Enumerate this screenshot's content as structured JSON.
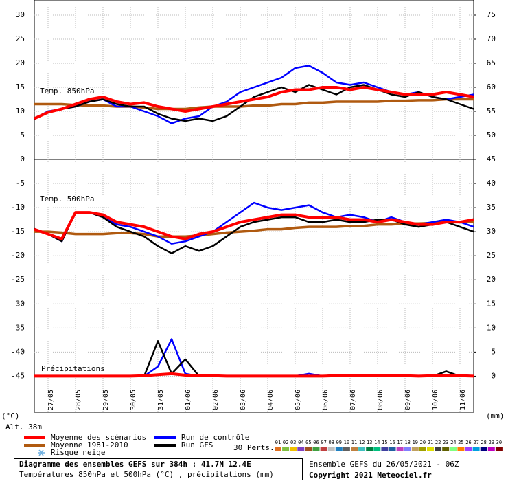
{
  "chart_data": {
    "type": "line",
    "title": "Diagramme des ensembles GEFS sur 384h : 41.7N 12.4E",
    "subtitle": "Températures 850hPa et 500hPa (°C) , précipitations (mm)",
    "run_info": "Ensemble GEFS du 26/05/2021 - 06Z",
    "copyright": "Copyright 2021 Meteociel.fr",
    "y_unit": "(°C)",
    "y2_unit": "(mm)",
    "altitude": "Alt. 38m",
    "categories": [
      null,
      "27/05",
      null,
      "28/05",
      null,
      "29/05",
      null,
      "30/05",
      null,
      "31/05",
      null,
      "01/06",
      null,
      "02/06",
      null,
      "03/06",
      null,
      "04/06",
      null,
      "05/06",
      null,
      "06/06",
      null,
      "07/06",
      null,
      "08/06",
      null,
      "09/06",
      null,
      "10/06",
      null,
      "11/06",
      null
    ],
    "grid": true,
    "legend": [
      {
        "name": "Moyenne des scénarios",
        "color": "#ff0000"
      },
      {
        "name": "Moyenne 1981-2010",
        "color": "#b05a10"
      },
      {
        "name": "Run de contrôle",
        "color": "#0000ff"
      },
      {
        "name": "Run GFS",
        "color": "#000000"
      },
      {
        "name": "Risque neige",
        "color": "#6aaee0"
      }
    ],
    "perturbations": {
      "label": "30 Perts.",
      "members": [
        {
          "name": "01",
          "color": "#e07020"
        },
        {
          "name": "02",
          "color": "#80c040"
        },
        {
          "name": "03",
          "color": "#f0c000"
        },
        {
          "name": "04",
          "color": "#8040c0"
        },
        {
          "name": "05",
          "color": "#a05020"
        },
        {
          "name": "06",
          "color": "#40a040"
        },
        {
          "name": "07",
          "color": "#c04040"
        },
        {
          "name": "08",
          "color": "#c0c0c0"
        },
        {
          "name": "09",
          "color": "#2080c0"
        },
        {
          "name": "10",
          "color": "#606060"
        },
        {
          "name": "11",
          "color": "#c08040"
        },
        {
          "name": "12",
          "color": "#40c0c0"
        },
        {
          "name": "13",
          "color": "#008040"
        },
        {
          "name": "14",
          "color": "#00c080"
        },
        {
          "name": "15",
          "color": "#4040a0"
        },
        {
          "name": "16",
          "color": "#2060a0"
        },
        {
          "name": "17",
          "color": "#c040c0"
        },
        {
          "name": "18",
          "color": "#8080ff"
        },
        {
          "name": "19",
          "color": "#c0a060"
        },
        {
          "name": "20",
          "color": "#a0a000"
        },
        {
          "name": "21",
          "color": "#e0e000"
        },
        {
          "name": "22",
          "color": "#404040"
        },
        {
          "name": "23",
          "color": "#606000"
        },
        {
          "name": "24",
          "color": "#80ff80"
        },
        {
          "name": "25",
          "color": "#ff8000"
        },
        {
          "name": "26",
          "color": "#a040ff"
        },
        {
          "name": "27",
          "color": "#00a0e0"
        },
        {
          "name": "28",
          "color": "#000080"
        },
        {
          "name": "29",
          "color": "#c000c0"
        },
        {
          "name": "30",
          "color": "#800000"
        }
      ]
    },
    "panels": [
      {
        "label": "Temp. 850hPa",
        "ylim": [
          0,
          33
        ],
        "yticks": [
          0,
          5,
          10,
          15,
          20,
          25,
          30
        ],
        "y2lim": [
          45,
          78
        ],
        "y2ticks": [
          45,
          50,
          55,
          60,
          65,
          70,
          75
        ],
        "series": [
          {
            "color": "#b05a10",
            "values": [
              11.5,
              11.5,
              11.5,
              11.3,
              11.2,
              11.2,
              11,
              11,
              10.8,
              10.5,
              10.5,
              10.5,
              10.8,
              11,
              11,
              11,
              11.2,
              11.2,
              11.5,
              11.5,
              11.8,
              11.8,
              12,
              12,
              12,
              12,
              12.2,
              12.2,
              12.3,
              12.3,
              12.5,
              12.5,
              12.5
            ]
          },
          {
            "color": "#0000ff",
            "values": [
              8.5,
              10,
              10.5,
              11,
              12,
              12.5,
              11,
              11,
              10,
              9,
              7.5,
              8.5,
              9,
              11,
              12,
              14,
              15,
              16,
              17,
              19,
              19.5,
              18,
              16,
              15.5,
              16,
              15,
              14,
              13.5,
              14,
              13,
              12.5,
              13,
              13.5
            ]
          },
          {
            "color": "#000000",
            "values": [
              8.5,
              9.8,
              10.5,
              11,
              12,
              12.5,
              11.5,
              11,
              11,
              9.5,
              8.5,
              8,
              8.5,
              8,
              9,
              11,
              13,
              14,
              15,
              14,
              15.5,
              14.5,
              13.5,
              15,
              15.5,
              14.5,
              13.5,
              13,
              14,
              13,
              12.5,
              11.5,
              10.5
            ]
          },
          {
            "color": "#ff0000",
            "values": [
              8.5,
              9.8,
              10.5,
              11.5,
              12.5,
              13,
              12,
              11.5,
              11.8,
              11,
              10.5,
              10,
              10.5,
              11,
              11.5,
              12,
              12.5,
              13,
              14,
              14.5,
              14.5,
              15,
              15,
              14.5,
              15,
              14.5,
              14,
              13.5,
              13.5,
              13.5,
              14,
              13.5,
              13
            ]
          }
        ]
      },
      {
        "label": "Temp. 500hPa",
        "label2": "Précipitations",
        "ylim": [
          -52.5,
          0
        ],
        "yticks": [
          -5,
          -10,
          -15,
          -20,
          -25,
          -30,
          -35,
          -40,
          -45
        ],
        "y2lim": [
          -7.5,
          45
        ],
        "y2ticks": [
          0,
          5,
          10,
          15,
          20,
          25,
          30,
          35,
          40
        ],
        "series": [
          {
            "color": "#b05a10",
            "values": [
              -15,
              -15,
              -15.2,
              -15.5,
              -15.5,
              -15.5,
              -15.3,
              -15.3,
              -15.5,
              -16,
              -16,
              -16,
              -15.8,
              -15.5,
              -15.2,
              -15,
              -14.8,
              -14.5,
              -14.5,
              -14.2,
              -14,
              -14,
              -14,
              -13.8,
              -13.8,
              -13.5,
              -13.5,
              -13.3,
              -13.3,
              -13.2,
              -13,
              -13,
              -13
            ]
          },
          {
            "color": "#0000ff",
            "values": [
              -14.5,
              -15.5,
              -17,
              -11,
              -11,
              -12,
              -13.5,
              -14,
              -15,
              -16,
              -17.5,
              -17,
              -16,
              -15,
              -13,
              -11,
              -9,
              -10,
              -10.5,
              -10,
              -9.5,
              -11,
              -12,
              -11.5,
              -12,
              -13,
              -12,
              -13,
              -13.5,
              -13,
              -12.5,
              -13,
              -14
            ]
          },
          {
            "color": "#000000",
            "values": [
              -14.5,
              -15.5,
              -17,
              -11,
              -11,
              -12,
              -14,
              -15,
              -16,
              -18,
              -19.5,
              -18,
              -19,
              -18,
              -16,
              -14,
              -13,
              -12.5,
              -12,
              -12,
              -13,
              -13,
              -12.5,
              -13,
              -13,
              -12.5,
              -12.5,
              -13.5,
              -14,
              -13.5,
              -13,
              -14,
              -15
            ]
          },
          {
            "color": "#ff0000",
            "values": [
              -14.5,
              -15.5,
              -16.5,
              -11,
              -11,
              -11.5,
              -13,
              -13.5,
              -14,
              -15,
              -16,
              -16.5,
              -15.5,
              -15,
              -14,
              -13,
              -12.5,
              -12,
              -11.5,
              -11.5,
              -12,
              -12,
              -12,
              -12.5,
              -12.5,
              -13,
              -12.5,
              -13,
              -13.5,
              -13.5,
              -13,
              -13,
              -12.5
            ]
          },
          {
            "color": "#0000ff",
            "axis": "y2",
            "values": [
              0,
              0,
              0,
              0,
              0,
              0,
              0,
              0,
              0,
              2,
              7.7,
              0.5,
              0,
              0,
              0,
              0,
              0,
              0,
              0,
              0,
              0.5,
              0,
              0,
              0,
              0,
              0,
              0.3,
              0,
              0,
              0,
              0,
              0.3,
              0
            ]
          },
          {
            "color": "#000000",
            "axis": "y2",
            "values": [
              0,
              0,
              0,
              0,
              0,
              0,
              0,
              0,
              0,
              7.3,
              0.5,
              3.5,
              0,
              0.2,
              0,
              0,
              0,
              0,
              0,
              0,
              0,
              0,
              0.3,
              0,
              0,
              0,
              0,
              0,
              0,
              0,
              1,
              0,
              0
            ]
          },
          {
            "color": "#ff0000",
            "axis": "y2",
            "values": [
              0,
              0,
              0,
              0,
              0,
              0,
              0,
              0,
              0.1,
              0.3,
              0.5,
              0.2,
              0.1,
              0.1,
              0,
              0,
              0,
              0,
              0,
              0,
              0,
              0,
              0.1,
              0.2,
              0.1,
              0.1,
              0.1,
              0.1,
              0,
              0.1,
              0.1,
              0.1,
              0
            ]
          }
        ]
      }
    ]
  }
}
